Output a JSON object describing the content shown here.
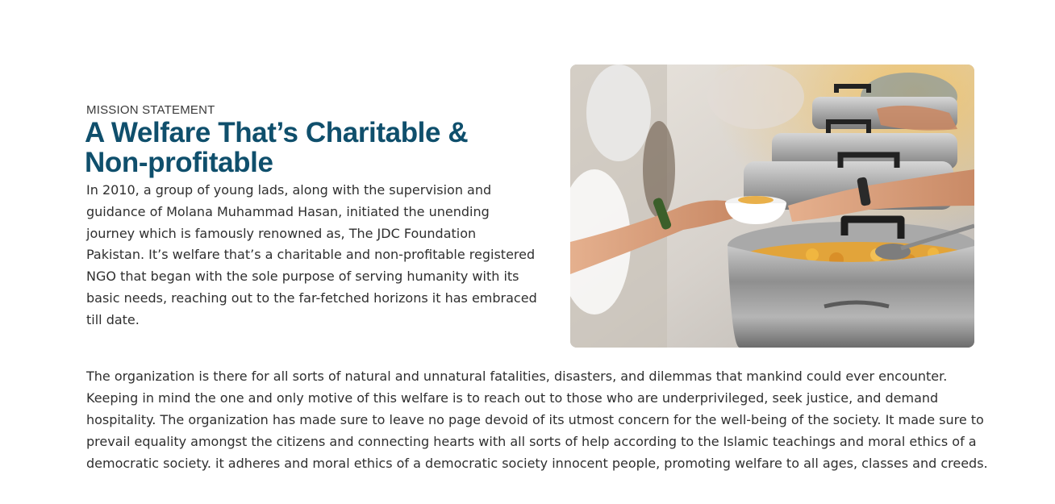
{
  "mission": {
    "eyebrow": "MISSION STATEMENT",
    "title": "A Welfare That’s Charitable & Non-profitable",
    "intro": "In 2010, a group of young lads, along with the supervision and guidance of Molana Muhammad Hasan, initiated the unending journey which is famously renowned as, The JDC Foundation Pakistan. It’s welfare that’s a charitable and non-profitable registered NGO that began with the sole purpose of serving humanity with its basic needs, reaching out to the far-fetched horizons it has embraced till date.",
    "body": "The organization is there for all sorts of natural and unnatural fatalities, disasters, and dilemmas that mankind could ever encounter. Keeping in mind the one and only motive of this welfare is to reach out to those who are underprivileged, seek justice, and demand hospitality. The organization has made sure to leave no page devoid of its utmost concern for the well-being of the society. It made sure to prevail equality amongst the citizens and connecting hearts with all sorts of help according to the Islamic teachings and moral ethics of a democratic society. it adheres and moral ethics of a democratic society innocent people, promoting welfare to all ages, classes and creeds."
  },
  "colors": {
    "title": "#0f4f6c",
    "text": "#2f2f2f"
  }
}
